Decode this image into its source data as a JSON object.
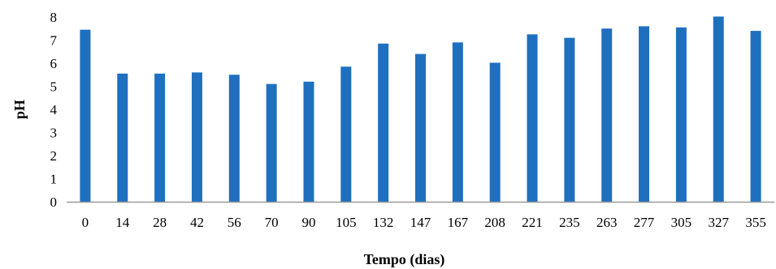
{
  "chart_data": {
    "type": "bar",
    "categories": [
      "0",
      "14",
      "28",
      "42",
      "56",
      "70",
      "90",
      "105",
      "132",
      "147",
      "167",
      "208",
      "221",
      "235",
      "263",
      "277",
      "305",
      "327",
      "355"
    ],
    "values": [
      7.45,
      5.55,
      5.55,
      5.6,
      5.5,
      5.1,
      5.2,
      5.85,
      6.85,
      6.4,
      6.9,
      6.02,
      7.25,
      7.1,
      7.5,
      7.6,
      7.55,
      8.02,
      7.4
    ],
    "title": "",
    "xlabel": "Tempo (dias)",
    "ylabel": "pH",
    "ylim": [
      0,
      8
    ],
    "yticks": [
      "0",
      "1",
      "2",
      "3",
      "4",
      "5",
      "6",
      "7",
      "8"
    ],
    "grid": false,
    "bar_color": "#1f6fbf",
    "axis_color": "#9a9a9a"
  }
}
